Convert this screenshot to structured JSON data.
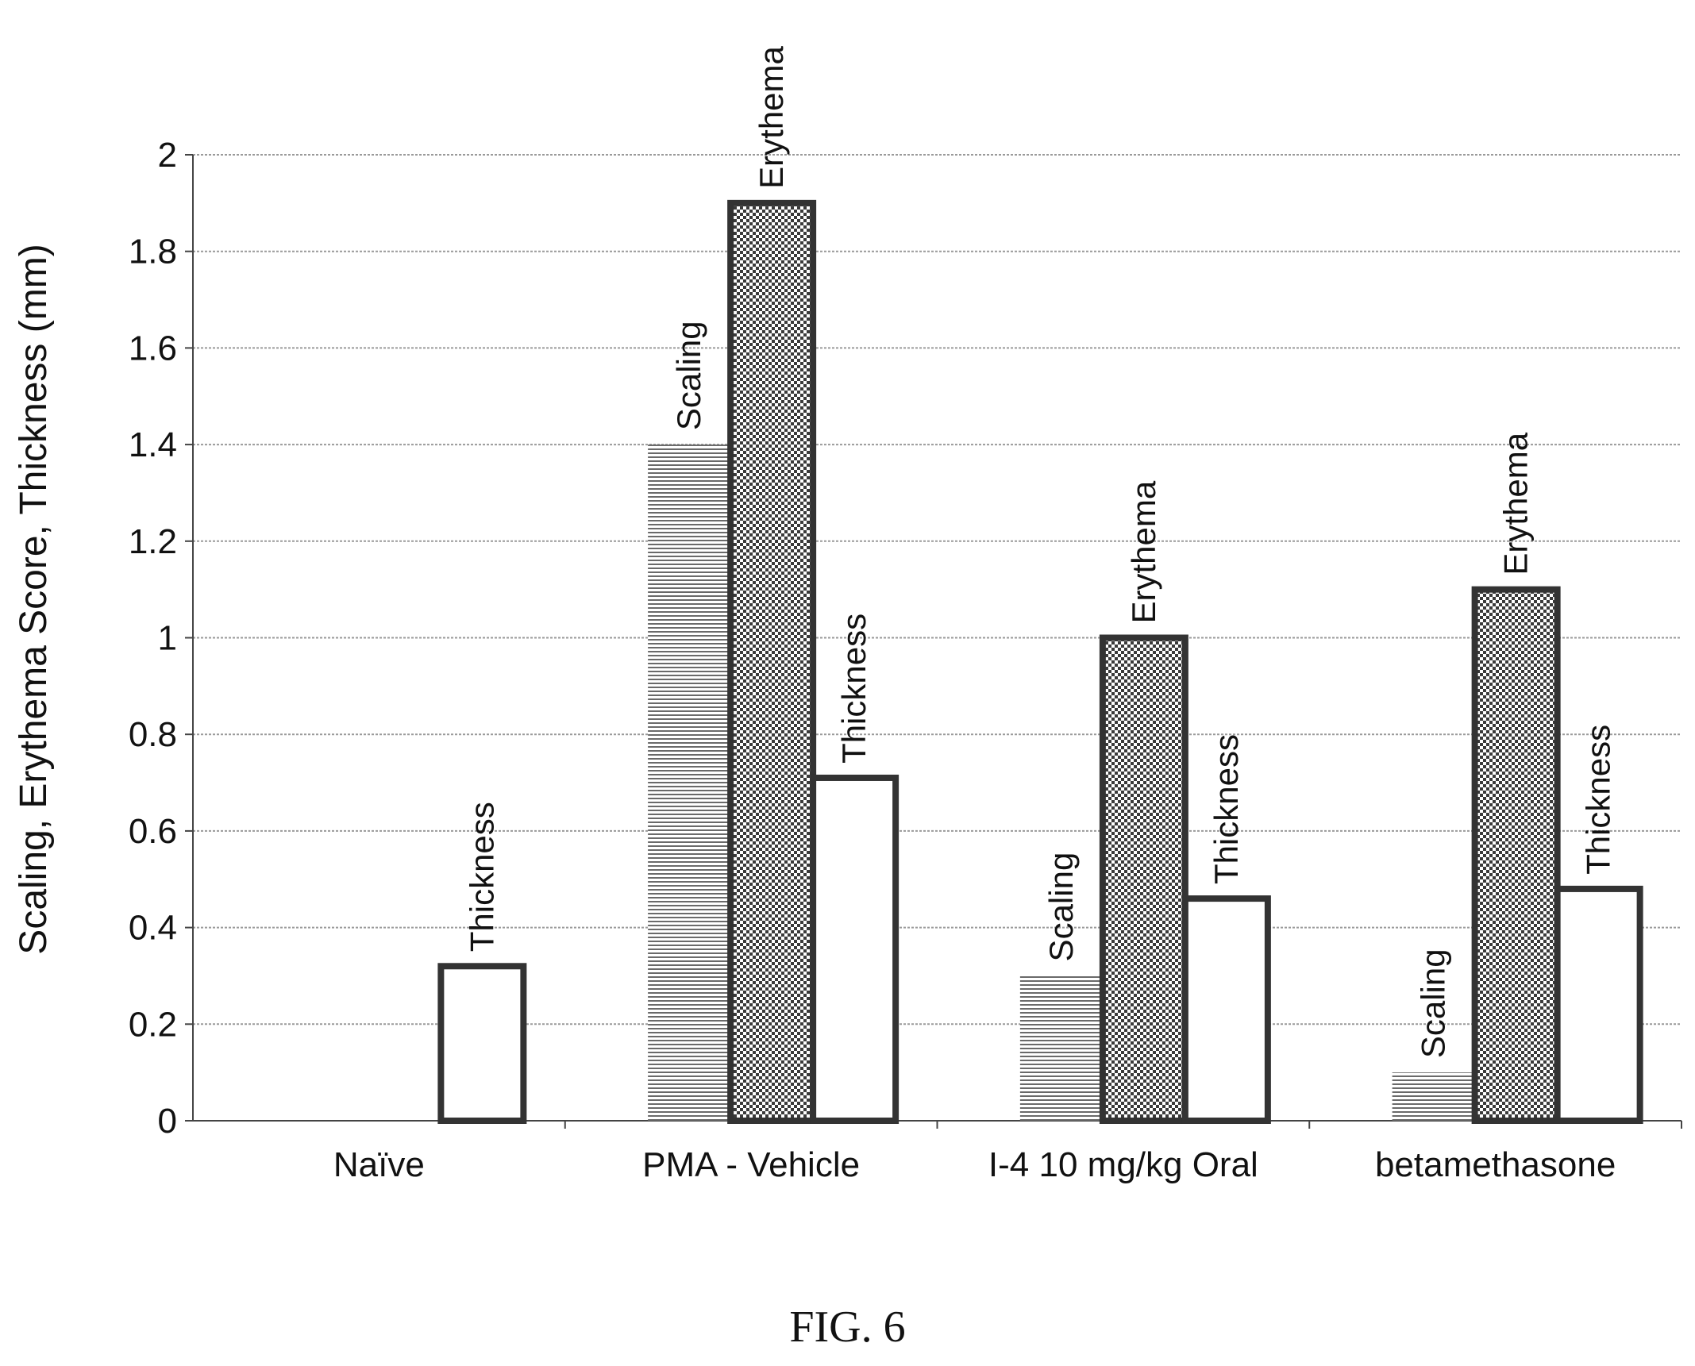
{
  "chart_data": {
    "type": "bar",
    "title": "",
    "xlabel": "",
    "ylabel": "Scaling, Erythema Score, Thickness (mm)",
    "ylim": [
      0,
      2
    ],
    "yticks": [
      0,
      0.2,
      0.4,
      0.6,
      0.8,
      1,
      1.2,
      1.4,
      1.6,
      1.8,
      2
    ],
    "ytick_labels": [
      "0",
      "0.2",
      "0.4",
      "0.6",
      "0.8",
      "1",
      "1.2",
      "1.4",
      "1.6",
      "1.8",
      "2"
    ],
    "grid": true,
    "legend": "none",
    "categories": [
      "Naïve",
      "PMA - Vehicle",
      "I-4 10 mg/kg Oral",
      "betamethasone"
    ],
    "series": [
      {
        "name": "Scaling",
        "values": [
          0,
          1.4,
          0.3,
          0.1
        ],
        "fill": "hatch-horizontal",
        "labels_shown": [
          false,
          true,
          true,
          true
        ]
      },
      {
        "name": "Erythema",
        "values": [
          0,
          1.9,
          1.0,
          1.1
        ],
        "fill": "checkered",
        "labels_shown": [
          false,
          true,
          true,
          true
        ]
      },
      {
        "name": "Thickness",
        "values": [
          0.32,
          0.71,
          0.46,
          0.48
        ],
        "fill": "white",
        "labels_shown": [
          true,
          true,
          true,
          true
        ]
      }
    ]
  },
  "figure": {
    "caption": "FIG. 6"
  }
}
